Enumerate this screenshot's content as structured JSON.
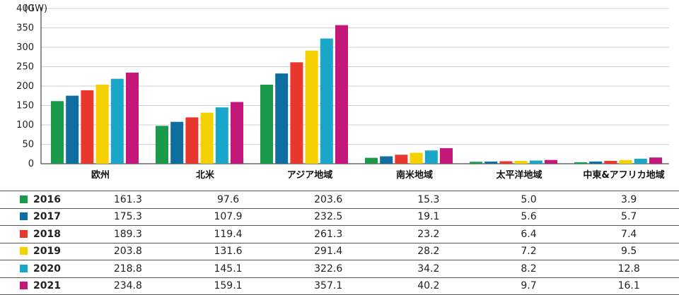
{
  "chart_data": {
    "type": "bar",
    "unit_label": "(GW)",
    "ylim": [
      0,
      400
    ],
    "yticks": [
      0,
      50,
      100,
      150,
      200,
      250,
      300,
      350,
      400
    ],
    "tick_labels": [
      "0",
      "50",
      "100",
      "150",
      "200",
      "250",
      "300",
      "350",
      "400"
    ],
    "grid": true,
    "categories": [
      "欧州",
      "北米",
      "アジア地域",
      "南米地域",
      "太平洋地域",
      "中東&アフリカ地域"
    ],
    "series": [
      {
        "name": "2016",
        "color": "#1a9a4a",
        "values": [
          161.3,
          97.6,
          203.6,
          15.3,
          5.0,
          3.9
        ],
        "labels": [
          "161.3",
          "97.6",
          "203.6",
          "15.3",
          "5.0",
          "3.9"
        ]
      },
      {
        "name": "2017",
        "color": "#0e6ea0",
        "values": [
          175.3,
          107.9,
          232.5,
          19.1,
          5.6,
          5.7
        ],
        "labels": [
          "175.3",
          "107.9",
          "232.5",
          "19.1",
          "5.6",
          "5.7"
        ]
      },
      {
        "name": "2018",
        "color": "#e8382e",
        "values": [
          189.3,
          119.4,
          261.3,
          23.2,
          6.4,
          7.4
        ],
        "labels": [
          "189.3",
          "119.4",
          "261.3",
          "23.2",
          "6.4",
          "7.4"
        ]
      },
      {
        "name": "2019",
        "color": "#f5d100",
        "values": [
          203.8,
          131.6,
          291.4,
          28.2,
          7.2,
          9.5
        ],
        "labels": [
          "203.8",
          "131.6",
          "291.4",
          "28.2",
          "7.2",
          "9.5"
        ]
      },
      {
        "name": "2020",
        "color": "#1aa6c8",
        "values": [
          218.8,
          145.1,
          322.6,
          34.2,
          8.2,
          12.8
        ],
        "labels": [
          "218.8",
          "145.1",
          "322.6",
          "34.2",
          "8.2",
          "12.8"
        ]
      },
      {
        "name": "2021",
        "color": "#c4177a",
        "values": [
          234.8,
          159.1,
          357.1,
          40.2,
          9.7,
          16.1
        ],
        "labels": [
          "234.8",
          "159.1",
          "357.1",
          "40.2",
          "9.7",
          "16.1"
        ]
      }
    ]
  }
}
